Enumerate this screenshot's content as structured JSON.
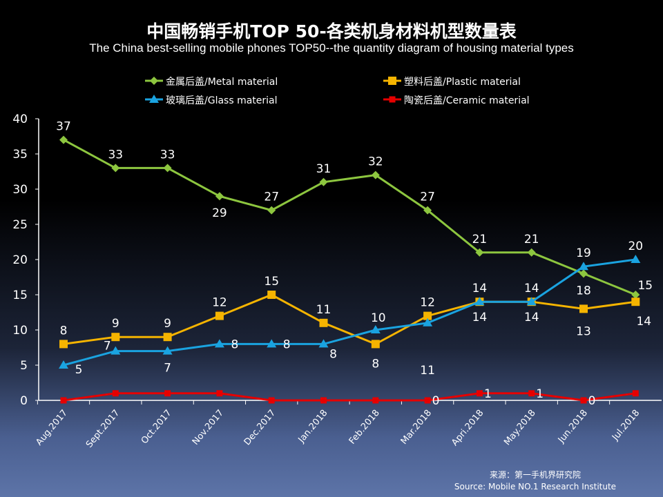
{
  "chart_data": {
    "type": "line",
    "title": "中国畅销手机TOP 50-各类机身材料机型数量表",
    "subtitle": "The China best-selling mobile phones TOP50--the quantity diagram of housing material types",
    "categories": [
      "Aug.2017",
      "Sept.2017",
      "Oct.2017",
      "Nov.2017",
      "Dec.2017",
      "Jan.2018",
      "Feb.2018",
      "Mar.2018",
      "Apri.2018",
      "May.2018",
      "Jun.2018",
      "Jul.2018"
    ],
    "ylim": [
      0,
      40
    ],
    "yticks": [
      0,
      5,
      10,
      15,
      20,
      25,
      30,
      35,
      40
    ],
    "grid": false,
    "legend_position": "top",
    "series": [
      {
        "name": "金属后盖/Metal material",
        "color": "#8dc63f",
        "marker": "diamond",
        "values": [
          37,
          33,
          33,
          29,
          27,
          31,
          32,
          27,
          21,
          21,
          18,
          15
        ]
      },
      {
        "name": "塑料后盖/Plastic material",
        "color": "#f5b400",
        "marker": "square",
        "values": [
          8,
          9,
          9,
          12,
          15,
          11,
          8,
          12,
          14,
          14,
          13,
          14
        ]
      },
      {
        "name": "玻璃后盖/Glass material",
        "color": "#1aa3e0",
        "marker": "triangle",
        "values": [
          5,
          7,
          7,
          8,
          8,
          8,
          10,
          11,
          14,
          14,
          19,
          20
        ]
      },
      {
        "name": "陶瓷后盖/Ceramic material",
        "color": "#e60000",
        "marker": "square",
        "values": [
          0,
          1,
          1,
          1,
          0,
          0,
          0,
          0,
          1,
          1,
          0,
          1
        ]
      }
    ]
  },
  "source": {
    "cn": "来源：第一手机界研究院",
    "en": "Source: Mobile NO.1 Research Institute"
  }
}
